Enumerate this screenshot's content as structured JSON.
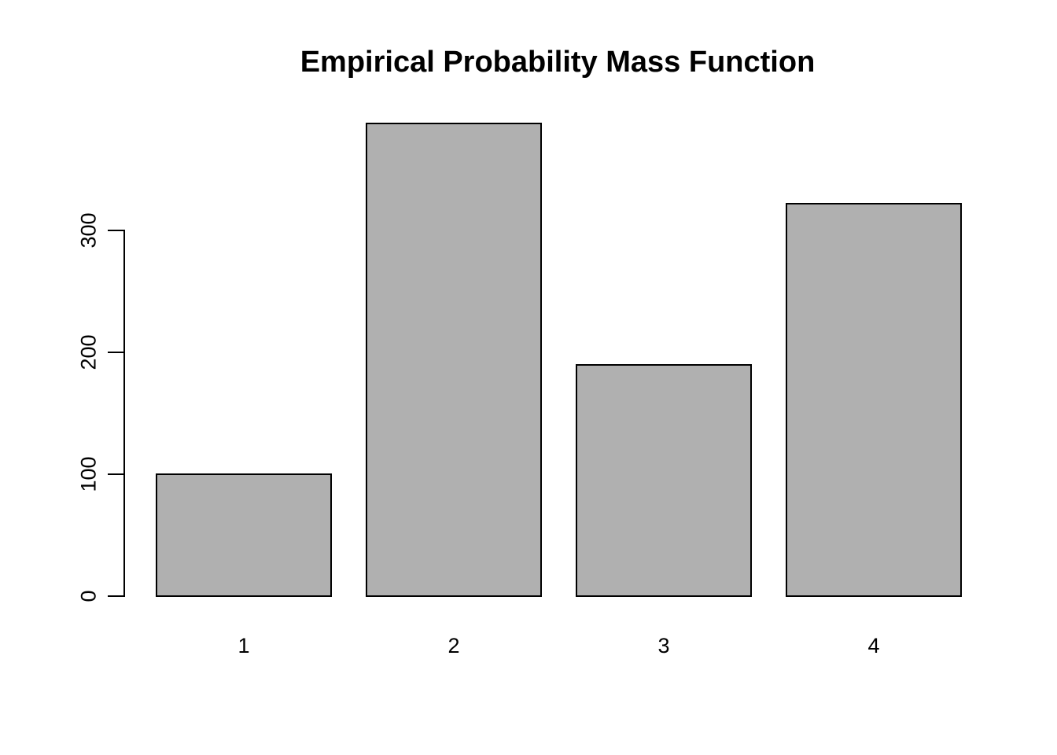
{
  "chart_data": {
    "type": "bar",
    "title": "Empirical Probability Mass Function",
    "categories": [
      "1",
      "2",
      "3",
      "4"
    ],
    "values": [
      100,
      388,
      190,
      322
    ],
    "xlabel": "",
    "ylabel": "",
    "yticks": [
      0,
      100,
      200,
      300
    ],
    "ylim": [
      0,
      388
    ],
    "grid": false,
    "legend": false,
    "colors": {
      "bar_fill": "#b0b0b0",
      "bar_border": "#000000",
      "axis": "#000000",
      "text": "#000000",
      "background": "#ffffff"
    }
  }
}
